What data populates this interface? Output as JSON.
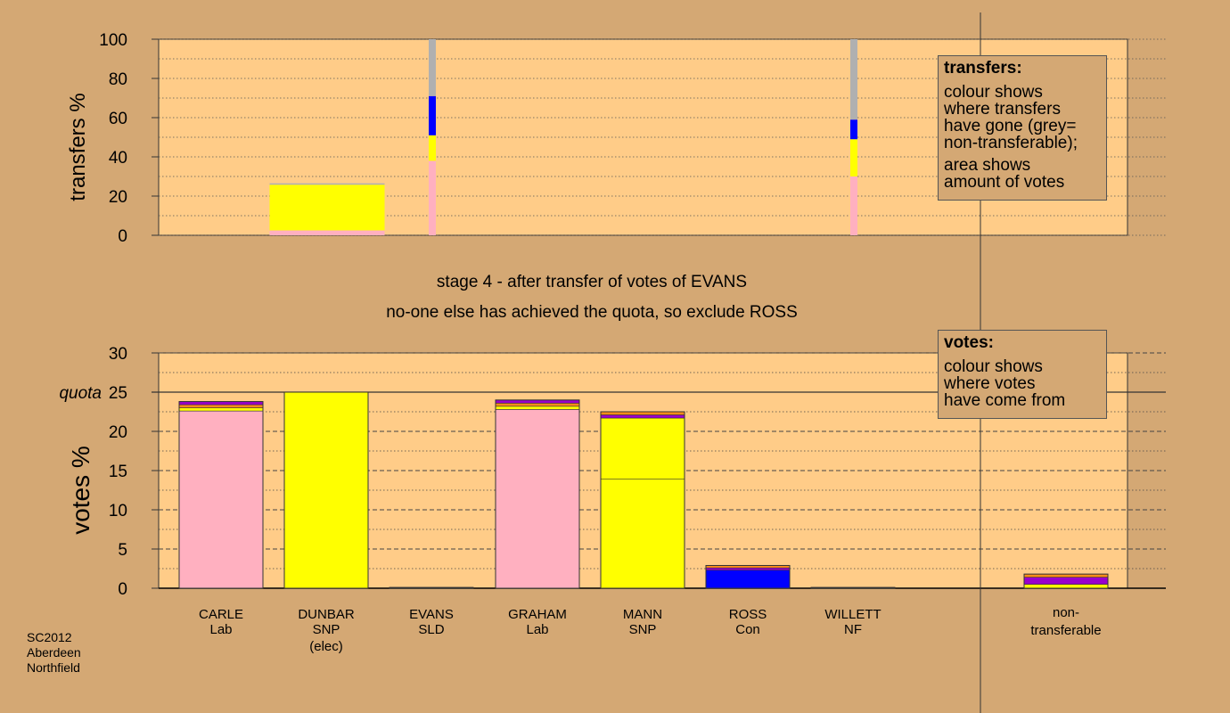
{
  "stage_line1": "stage 4 - after transfer of votes of EVANS",
  "stage_line2": "no-one else has achieved the quota, so exclude ROSS",
  "footer": {
    "line1": "SC2012",
    "line2": "Aberdeen",
    "line3": "Northfield"
  },
  "legend_transfers": {
    "title": "transfers:",
    "para1": "colour shows\nwhere transfers\nhave gone (grey=\nnon-transferable);",
    "para2": "area shows\namount of votes"
  },
  "legend_votes": {
    "title": "votes:",
    "para1": "colour shows\nwhere votes\nhave come from"
  },
  "colors": {
    "background": "#d4a874",
    "plot": "#ffcc88",
    "Lab": "#ffb0c0",
    "SNP": "#ffff00",
    "Con": "#0000ff",
    "SLD": "#ff8c1a",
    "NF": "#9900cc",
    "non_transferable": "#b0b0b0"
  },
  "chart_data": [
    {
      "type": "bar",
      "ylabel": "transfers %",
      "ylim": [
        0,
        100
      ],
      "yticks": [
        0,
        20,
        40,
        60,
        80,
        100
      ],
      "bars": [
        {
          "name": "DUNBAR",
          "width_pct": 26.5,
          "segments": [
            {
              "party": "Lab",
              "value": 2.5
            },
            {
              "party": "SNP",
              "value": 23.3
            },
            {
              "party": "non_transferable",
              "value": 0.7
            }
          ]
        },
        {
          "name": "EVANS",
          "width_pct": 0.8,
          "segments": [
            {
              "party": "Lab",
              "value": 38
            },
            {
              "party": "SNP",
              "value": 13
            },
            {
              "party": "Con",
              "value": 20
            },
            {
              "party": "non_transferable",
              "value": 29
            }
          ]
        },
        {
          "name": "WILLETT",
          "width_pct": 0.8,
          "segments": [
            {
              "party": "Lab",
              "value": 30
            },
            {
              "party": "SNP",
              "value": 19
            },
            {
              "party": "Con",
              "value": 10
            },
            {
              "party": "non_transferable",
              "value": 41
            }
          ]
        }
      ]
    },
    {
      "type": "bar",
      "ylabel": "votes %",
      "ylim": [
        0,
        30
      ],
      "yticks": [
        0,
        5,
        10,
        15,
        20,
        25,
        30
      ],
      "quota": 25,
      "quota_label": "quota",
      "categories": [
        {
          "name": "CARLE",
          "party": "Lab",
          "extra": ""
        },
        {
          "name": "DUNBAR",
          "party": "SNP",
          "extra": "(elec)"
        },
        {
          "name": "EVANS",
          "party": "SLD",
          "extra": ""
        },
        {
          "name": "GRAHAM",
          "party": "Lab",
          "extra": ""
        },
        {
          "name": "MANN",
          "party": "SNP",
          "extra": ""
        },
        {
          "name": "ROSS",
          "party": "Con",
          "extra": ""
        },
        {
          "name": "WILLETT",
          "party": "NF",
          "extra": ""
        }
      ],
      "nontransferable_label": {
        "line1": "non-",
        "line2": "transferable"
      },
      "stacks": [
        [
          {
            "party": "Lab",
            "value": 22.6
          },
          {
            "party": "SNP",
            "value": 0.4
          },
          {
            "party": "SLD",
            "value": 0.4
          },
          {
            "party": "NF",
            "value": 0.4
          }
        ],
        [
          {
            "party": "SNP",
            "value": 25.0
          }
        ],
        [
          {
            "party": "SLD",
            "value": 0.1
          }
        ],
        [
          {
            "party": "Lab",
            "value": 22.8
          },
          {
            "party": "SNP",
            "value": 0.4
          },
          {
            "party": "SLD",
            "value": 0.4
          },
          {
            "party": "NF",
            "value": 0.4
          }
        ],
        [
          {
            "party": "SNP",
            "value": 13.9
          },
          {
            "party": "SNP",
            "value": 7.8
          },
          {
            "party": "NF",
            "value": 0.4
          },
          {
            "party": "SLD",
            "value": 0.4
          }
        ],
        [
          {
            "party": "Con",
            "value": 2.3
          },
          {
            "party": "NF",
            "value": 0.3
          },
          {
            "party": "SLD",
            "value": 0.3
          }
        ],
        [
          {
            "party": "NF",
            "value": 0.1
          }
        ],
        [
          {
            "party": "SNP",
            "value": 0.5
          },
          {
            "party": "NF",
            "value": 0.9
          },
          {
            "party": "SLD",
            "value": 0.4
          }
        ]
      ]
    }
  ]
}
